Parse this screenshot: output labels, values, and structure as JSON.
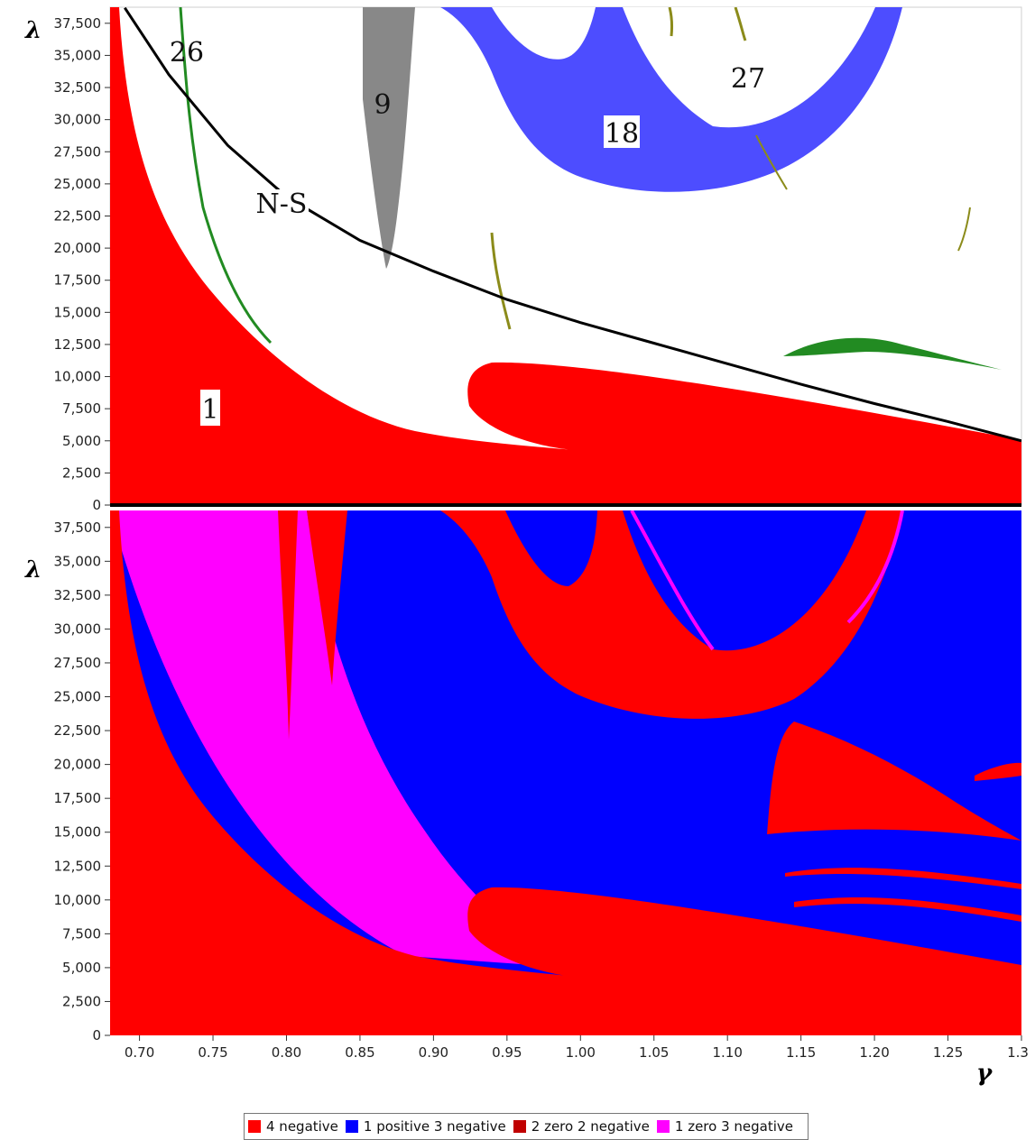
{
  "chart_data": [
    {
      "type": "heatmap",
      "panel": "top",
      "xlim": [
        0.68,
        1.3
      ],
      "ylim": [
        0,
        38750
      ],
      "ylabel": "λ",
      "y_ticks": [
        "0",
        "2,500",
        "5,000",
        "7,500",
        "10,000",
        "12,500",
        "15,000",
        "17,500",
        "20,000",
        "22,500",
        "25,000",
        "27,500",
        "30,000",
        "32,500",
        "35,000",
        "37,500"
      ],
      "y_tick_values": [
        0,
        2500,
        5000,
        7500,
        10000,
        12500,
        15000,
        17500,
        20000,
        22500,
        25000,
        27500,
        30000,
        32500,
        35000,
        37500
      ],
      "regions": [
        {
          "label": "1",
          "color": "#ff0000"
        },
        {
          "label": "9",
          "color": "#888888"
        },
        {
          "label": "18",
          "color": "#4d4dff"
        },
        {
          "label": "26",
          "color": "#228b22"
        },
        {
          "label": "27",
          "color": "#8b8b1a"
        }
      ],
      "curve": {
        "label": "N-S",
        "points": [
          [
            0.69,
            38700
          ],
          [
            0.72,
            33500
          ],
          [
            0.76,
            28000
          ],
          [
            0.8,
            24000
          ],
          [
            0.85,
            20600
          ],
          [
            0.9,
            18200
          ],
          [
            0.95,
            16000
          ],
          [
            1.0,
            14200
          ],
          [
            1.05,
            12600
          ],
          [
            1.1,
            11000
          ],
          [
            1.15,
            9400
          ],
          [
            1.2,
            7900
          ],
          [
            1.25,
            6500
          ],
          [
            1.3,
            5000
          ]
        ]
      }
    },
    {
      "type": "heatmap",
      "panel": "bottom",
      "xlim": [
        0.68,
        1.3
      ],
      "ylim": [
        0,
        38750
      ],
      "xlabel": "γ",
      "ylabel": "λ",
      "x_ticks": [
        "0.70",
        "0.75",
        "0.80",
        "0.85",
        "0.90",
        "0.95",
        "1.00",
        "1.05",
        "1.10",
        "1.15",
        "1.20",
        "1.25",
        "1.3"
      ],
      "x_tick_values": [
        0.7,
        0.75,
        0.8,
        0.85,
        0.9,
        0.95,
        1.0,
        1.05,
        1.1,
        1.15,
        1.2,
        1.25,
        1.3
      ],
      "y_ticks": [
        "0",
        "2,500",
        "5,000",
        "7,500",
        "10,000",
        "12,500",
        "15,000",
        "17,500",
        "20,000",
        "22,500",
        "25,000",
        "27,500",
        "30,000",
        "32,500",
        "35,000",
        "37,500"
      ],
      "y_tick_values": [
        0,
        2500,
        5000,
        7500,
        10000,
        12500,
        15000,
        17500,
        20000,
        22500,
        25000,
        27500,
        30000,
        32500,
        35000,
        37500
      ],
      "legend": [
        {
          "label": "4 negative",
          "color": "#ff0000"
        },
        {
          "label": "1 positive  3 negative",
          "color": "#0000ff"
        },
        {
          "label": "2 zero  2 negative",
          "color": "#c00000"
        },
        {
          "label": "1 zero  3 negative",
          "color": "#ff00ff"
        }
      ]
    }
  ]
}
